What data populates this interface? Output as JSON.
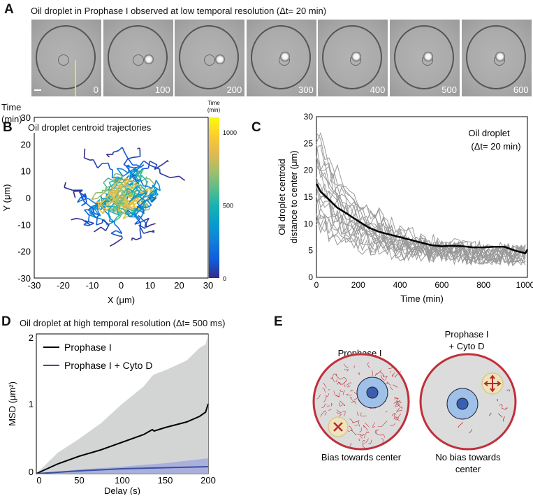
{
  "panels": {
    "A": "A",
    "B": "B",
    "C": "C",
    "D": "D",
    "E": "E"
  },
  "panel_a": {
    "title": "Oil droplet in Prophase I observed at low temporal resolution (Δt= 20 min)",
    "time_label_1": "Time",
    "time_label_2": "(min)",
    "frames": [
      "0",
      "100",
      "200",
      "300",
      "400",
      "500",
      "600"
    ]
  },
  "chart_data": [
    {
      "id": "B",
      "type": "line",
      "title": "Oil droplet centroid trajectories",
      "xlabel": "X (μm)",
      "ylabel": "Y (μm)",
      "xlim": [
        -30,
        30
      ],
      "ylim": [
        -30,
        30
      ],
      "xticks": [
        "-30",
        "-20",
        "-10",
        "0",
        "10",
        "20",
        "30"
      ],
      "yticks": [
        "-30",
        "-20",
        "-10",
        "0",
        "10",
        "20",
        "30"
      ],
      "colorbar": {
        "label_1": "Time",
        "label_2": "(min)",
        "range": [
          0,
          1100
        ],
        "ticks": [
          "0",
          "500",
          "1000"
        ],
        "colormap": "parula"
      },
      "trajectory_count": 14,
      "note_center": [
        0,
        0
      ]
    },
    {
      "id": "C",
      "type": "line",
      "legend_1": "Oil droplet",
      "legend_2": "(Δt= 20 min)",
      "xlabel": "Time (min)",
      "ylabel_1": "Oil droplet centroid",
      "ylabel_2": "distance to center (μm)",
      "xlim": [
        0,
        1000
      ],
      "ylim": [
        0,
        30
      ],
      "xticks": [
        "0",
        "200",
        "400",
        "600",
        "800",
        "1000"
      ],
      "yticks": [
        "0",
        "5",
        "10",
        "15",
        "20",
        "25",
        "30"
      ],
      "mean": {
        "x": [
          0,
          20,
          60,
          100,
          150,
          200,
          250,
          300,
          350,
          400,
          450,
          500,
          550,
          600,
          650,
          700,
          750,
          800,
          850,
          900,
          950,
          1000,
          1010
        ],
        "y": [
          17.5,
          16,
          14.5,
          13,
          11.8,
          10.5,
          9.3,
          8.5,
          8,
          7.5,
          7,
          6.5,
          6,
          5.8,
          5.9,
          5.8,
          5.6,
          5.6,
          5.7,
          5.7,
          5,
          4.5,
          5.2
        ],
        "color": "#000000"
      },
      "individual_count": 20,
      "individual_color": "#9a9a9a"
    },
    {
      "id": "D",
      "type": "line",
      "title": "Oil droplet  at high temporal resolution (Δt= 500 ms)",
      "xlabel": "Delay (s)",
      "ylabel": "MSD (μm²)",
      "xlim": [
        0,
        200
      ],
      "ylim": [
        0,
        2
      ],
      "xticks": [
        "0",
        "50",
        "100",
        "150",
        "200"
      ],
      "yticks": [
        "0",
        "1",
        "2"
      ],
      "series": [
        {
          "name": "Prophase I",
          "color": "#000000",
          "band_color": "#d3d5d5",
          "x": [
            0,
            25,
            50,
            75,
            100,
            125,
            135,
            137,
            150,
            175,
            190,
            197,
            200
          ],
          "y": [
            0,
            0.14,
            0.25,
            0.34,
            0.45,
            0.56,
            0.63,
            0.61,
            0.66,
            0.74,
            0.82,
            0.88,
            1.0
          ],
          "upper": [
            0,
            0.3,
            0.5,
            0.72,
            1.0,
            1.25,
            1.4,
            1.42,
            1.48,
            1.62,
            1.8,
            1.85,
            2.0
          ]
        },
        {
          "name": "Prophase I + Cyto D",
          "color": "#3a4fa0",
          "band_color": "#9fa6dd",
          "x": [
            0,
            50,
            100,
            150,
            200
          ],
          "y": [
            0,
            0.04,
            0.07,
            0.085,
            0.1
          ],
          "upper": [
            0,
            0.06,
            0.1,
            0.15,
            0.22
          ]
        }
      ]
    }
  ],
  "panel_e": {
    "left_title": "Prophase I",
    "right_title_1": "Prophase I",
    "right_title_2": "+ Cyto D",
    "left_caption": "Bias towards center",
    "right_caption_1": "No bias towards",
    "right_caption_2": "center"
  }
}
